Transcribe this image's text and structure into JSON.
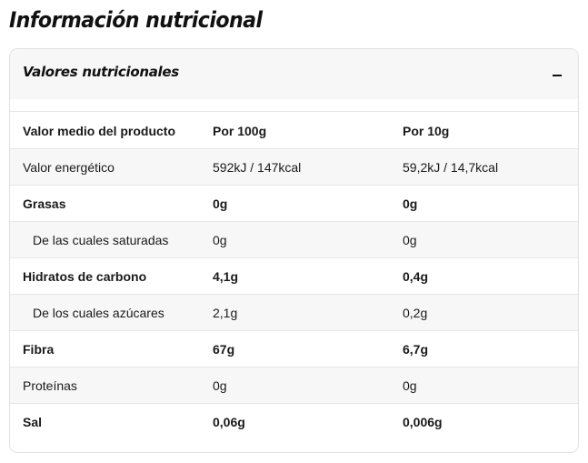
{
  "page": {
    "title": "Información nutricional"
  },
  "panel": {
    "title": "Valores nutricionales",
    "toggle_icon": "minus-icon"
  },
  "table": {
    "header": [
      "Valor medio del producto",
      "Por 100g",
      "Por 10g"
    ],
    "rows": [
      {
        "name": "Valor energético",
        "per_100g": "592kJ / 147kcal",
        "per_10g": "59,2kJ / 14,7kcal",
        "bold": false,
        "indented": false
      },
      {
        "name": "Grasas",
        "per_100g": "0g",
        "per_10g": "0g",
        "bold": true,
        "indented": false
      },
      {
        "name": "De las cuales saturadas",
        "per_100g": "0g",
        "per_10g": "0g",
        "bold": false,
        "indented": true
      },
      {
        "name": "Hidratos de carbono",
        "per_100g": "4,1g",
        "per_10g": "0,4g",
        "bold": true,
        "indented": false
      },
      {
        "name": "De los cuales azúcares",
        "per_100g": "2,1g",
        "per_10g": "0,2g",
        "bold": false,
        "indented": true
      },
      {
        "name": "Fibra",
        "per_100g": "67g",
        "per_10g": "6,7g",
        "bold": true,
        "indented": false
      },
      {
        "name": "Proteínas",
        "per_100g": "0g",
        "per_10g": "0g",
        "bold": false,
        "indented": false
      },
      {
        "name": "Sal",
        "per_100g": "0,06g",
        "per_10g": "0,006g",
        "bold": true,
        "indented": false
      }
    ]
  },
  "colors": {
    "text": "#1a1a1a",
    "row_shade": "#f7f7f7",
    "divider": "#e6e6e6",
    "border": "#e2e2e2"
  }
}
